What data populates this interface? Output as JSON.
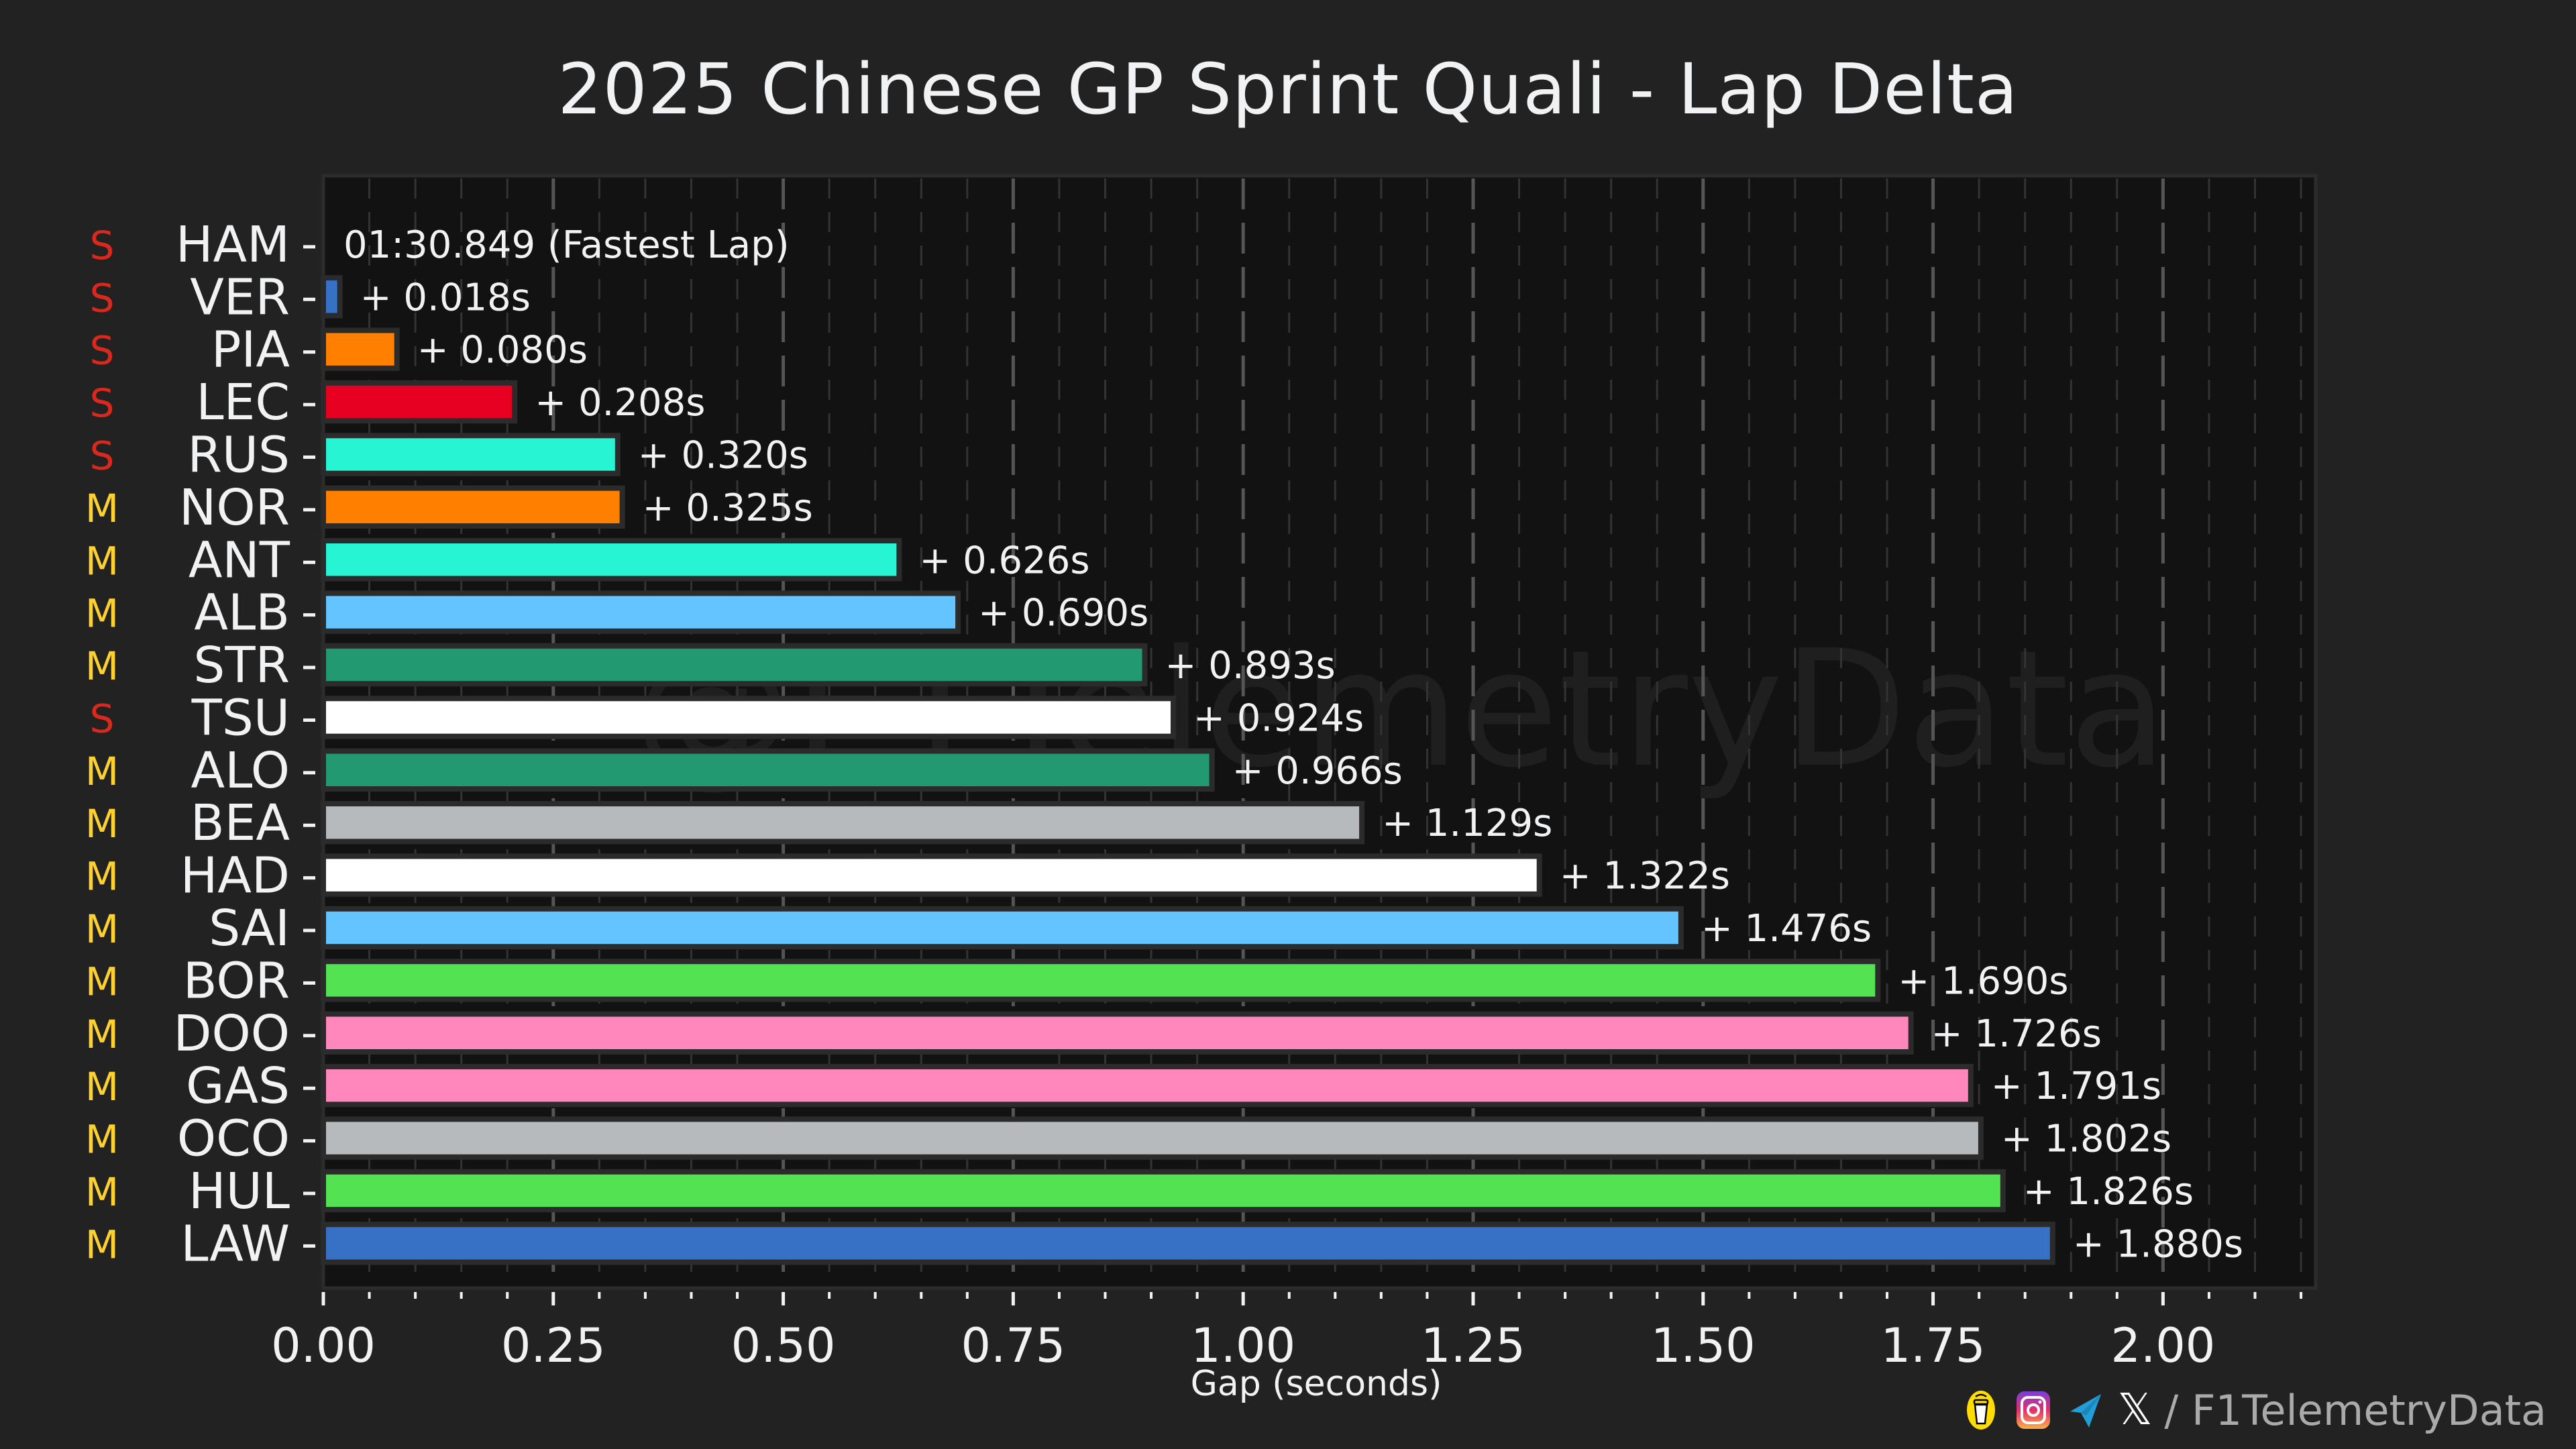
{
  "chart_data": {
    "type": "bar",
    "orientation": "horizontal",
    "title": "2025 Chinese GP Sprint Quali - Lap Delta",
    "xlabel": "Gap (seconds)",
    "ylabel": "",
    "xlim": [
      0,
      2.166
    ],
    "xticks": [
      "0.00",
      "0.25",
      "0.50",
      "0.75",
      "1.00",
      "1.25",
      "1.50",
      "1.75",
      "2.00"
    ],
    "xtick_values": [
      0,
      0.25,
      0.5,
      0.75,
      1.0,
      1.25,
      1.5,
      1.75,
      2.0
    ],
    "grid": "vertical dashed, major every 0.25, minor every 0.05",
    "watermark": "@F1TelemetryData",
    "fastest_lap_label": "01:30.849 (Fastest Lap)",
    "value_prefix": "+ ",
    "value_suffix": "s",
    "categories": [
      "HAM",
      "VER",
      "PIA",
      "LEC",
      "RUS",
      "NOR",
      "ANT",
      "ALB",
      "STR",
      "TSU",
      "ALO",
      "BEA",
      "HAD",
      "SAI",
      "BOR",
      "DOO",
      "GAS",
      "OCO",
      "HUL",
      "LAW"
    ],
    "values": [
      0.0,
      0.018,
      0.08,
      0.208,
      0.32,
      0.325,
      0.626,
      0.69,
      0.893,
      0.924,
      0.966,
      1.129,
      1.322,
      1.476,
      1.69,
      1.726,
      1.791,
      1.802,
      1.826,
      1.88
    ],
    "value_labels": [
      "01:30.849 (Fastest Lap)",
      "+ 0.018s",
      "+ 0.080s",
      "+ 0.208s",
      "+ 0.320s",
      "+ 0.325s",
      "+ 0.626s",
      "+ 0.690s",
      "+ 0.893s",
      "+ 0.924s",
      "+ 0.966s",
      "+ 1.129s",
      "+ 1.322s",
      "+ 1.476s",
      "+ 1.690s",
      "+ 1.726s",
      "+ 1.791s",
      "+ 1.802s",
      "+ 1.826s",
      "+ 1.880s"
    ],
    "colors": [
      "#27f4d2",
      "#3671c6",
      "#ff8000",
      "#e80020",
      "#27f4d2",
      "#ff8000",
      "#27f4d2",
      "#64c4ff",
      "#229971",
      "#ffffff",
      "#229971",
      "#b6babd",
      "#ffffff",
      "#64c4ff",
      "#52e252",
      "#ff87bc",
      "#ff87bc",
      "#b6babd",
      "#52e252",
      "#3671c6"
    ],
    "tyres": [
      "S",
      "S",
      "S",
      "S",
      "S",
      "M",
      "M",
      "M",
      "M",
      "S",
      "M",
      "M",
      "M",
      "M",
      "M",
      "M",
      "M",
      "M",
      "M",
      "M"
    ],
    "tyre_colors": {
      "S": "#da291c",
      "M": "#ffd12e"
    }
  },
  "footer": {
    "icons": [
      "buymeacoffee-icon",
      "instagram-icon",
      "telegram-icon",
      "x-icon"
    ],
    "x_glyph": "𝕏",
    "handle": "/ F1TelemetryData"
  }
}
